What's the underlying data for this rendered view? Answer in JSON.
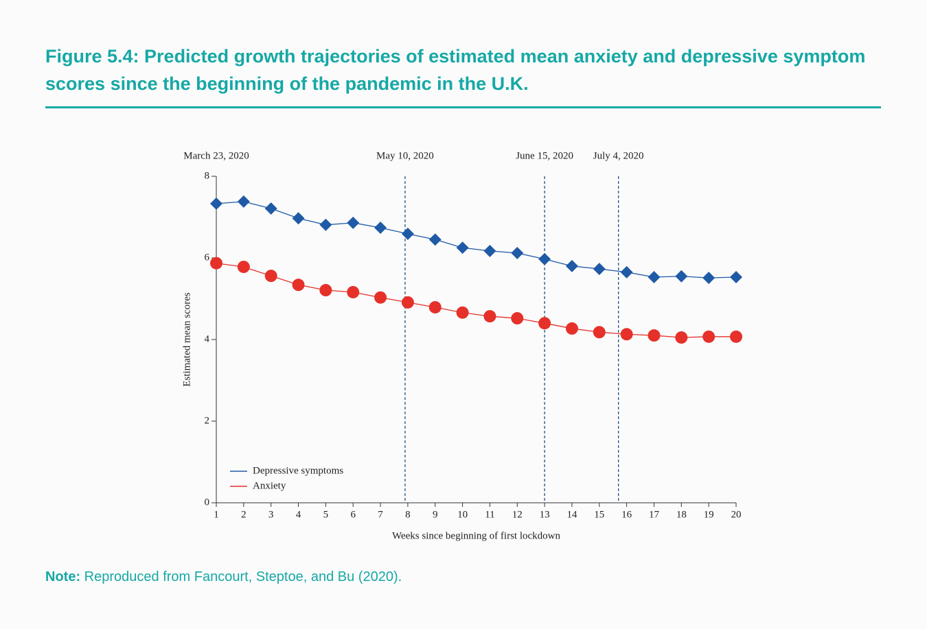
{
  "chart_data": {
    "type": "line",
    "title": "Figure 5.4: Predicted growth trajectories of estimated mean anxiety and depressive symptom scores since the beginning of the pandemic in the U.K.",
    "x_label": "Weeks since beginning of first lockdown",
    "y_label": "Estimated mean scores",
    "x": [
      1,
      2,
      3,
      4,
      5,
      6,
      7,
      8,
      9,
      10,
      11,
      12,
      13,
      14,
      15,
      16,
      17,
      18,
      19,
      20
    ],
    "series": [
      {
        "name": "Depressive symptoms",
        "color": "#1f5aa6",
        "marker": "diamond",
        "values": [
          7.33,
          7.38,
          7.21,
          6.97,
          6.81,
          6.86,
          6.74,
          6.59,
          6.45,
          6.25,
          6.17,
          6.12,
          5.97,
          5.8,
          5.73,
          5.65,
          5.53,
          5.55,
          5.51,
          5.53
        ]
      },
      {
        "name": "Anxiety",
        "color": "#e5312a",
        "marker": "circle",
        "values": [
          5.87,
          5.78,
          5.56,
          5.34,
          5.21,
          5.16,
          5.03,
          4.91,
          4.79,
          4.66,
          4.57,
          4.52,
          4.4,
          4.27,
          4.18,
          4.13,
          4.1,
          4.05,
          4.07,
          4.07
        ]
      }
    ],
    "xlim": [
      1,
      20
    ],
    "xticks": [
      1,
      2,
      3,
      4,
      5,
      6,
      7,
      8,
      9,
      10,
      11,
      12,
      13,
      14,
      15,
      16,
      17,
      18,
      19,
      20
    ],
    "ylim": [
      0,
      8
    ],
    "yticks": [
      0,
      2,
      4,
      6,
      8
    ],
    "legend": "lower left",
    "annotations": [
      {
        "x": 1,
        "label": "March 23, 2020",
        "dashed": false
      },
      {
        "x": 7.9,
        "label": "May 10, 2020",
        "dashed": true
      },
      {
        "x": 13,
        "label": "June 15, 2020",
        "dashed": true
      },
      {
        "x": 15.7,
        "label": "July 4, 2020",
        "dashed": true
      }
    ],
    "note": {
      "label": "Note:",
      "text": "Reproduced from Fancourt, Steptoe, and Bu (2020)."
    }
  }
}
